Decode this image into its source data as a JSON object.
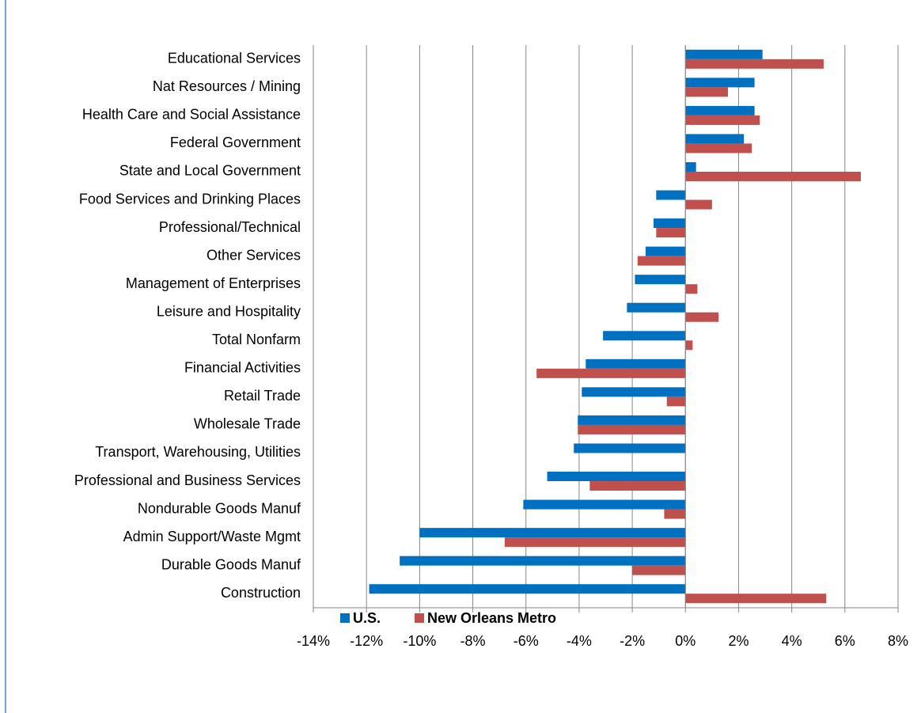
{
  "chart_data": {
    "type": "bar",
    "orientation": "horizontal",
    "categories": [
      "Educational Services",
      "Nat Resources / Mining",
      "Health Care and Social Assistance",
      "Federal Government",
      "State and Local Government",
      "Food Services and Drinking Places",
      "Professional/Technical",
      "Other Services",
      "Management of Enterprises",
      "Leisure and Hospitality",
      "Total Nonfarm",
      "Financial Activities",
      "Retail Trade",
      "Wholesale Trade",
      "Transport, Warehousing, Utilities",
      "Professional and Business Services",
      "Nondurable Goods Manuf",
      "Admin Support/Waste Mgmt",
      "Durable Goods Manuf",
      "Construction"
    ],
    "series": [
      {
        "name": "U.S.",
        "color": "#0070c0",
        "values": [
          2.9,
          2.6,
          2.6,
          2.2,
          0.4,
          -1.1,
          -1.2,
          -1.5,
          -1.9,
          -2.2,
          -3.1,
          -3.75,
          -3.9,
          -4.05,
          -4.2,
          -5.2,
          -6.1,
          -10.0,
          -10.75,
          -11.9
        ]
      },
      {
        "name": "New Orleans Metro",
        "color": "#c0504d",
        "values": [
          5.2,
          1.6,
          2.8,
          2.5,
          6.6,
          1.0,
          -1.1,
          -1.8,
          0.45,
          1.25,
          0.27,
          -5.6,
          -0.7,
          -4.05,
          0,
          -3.6,
          -0.8,
          -6.8,
          -2.0,
          5.3
        ]
      }
    ],
    "xlim": [
      -14,
      8
    ],
    "xticks": [
      {
        "value": -14,
        "label": "-14%"
      },
      {
        "value": -12,
        "label": "-12%"
      },
      {
        "value": -10,
        "label": "-10%"
      },
      {
        "value": -8,
        "label": "-8%"
      },
      {
        "value": -6,
        "label": "-6%"
      },
      {
        "value": -4,
        "label": "-4%"
      },
      {
        "value": -2,
        "label": "-2%"
      },
      {
        "value": 0,
        "label": "0%"
      },
      {
        "value": 2,
        "label": "2%"
      },
      {
        "value": 4,
        "label": "4%"
      },
      {
        "value": 6,
        "label": "6%"
      },
      {
        "value": 8,
        "label": "8%"
      }
    ],
    "grid": true,
    "legend": "bottom"
  }
}
